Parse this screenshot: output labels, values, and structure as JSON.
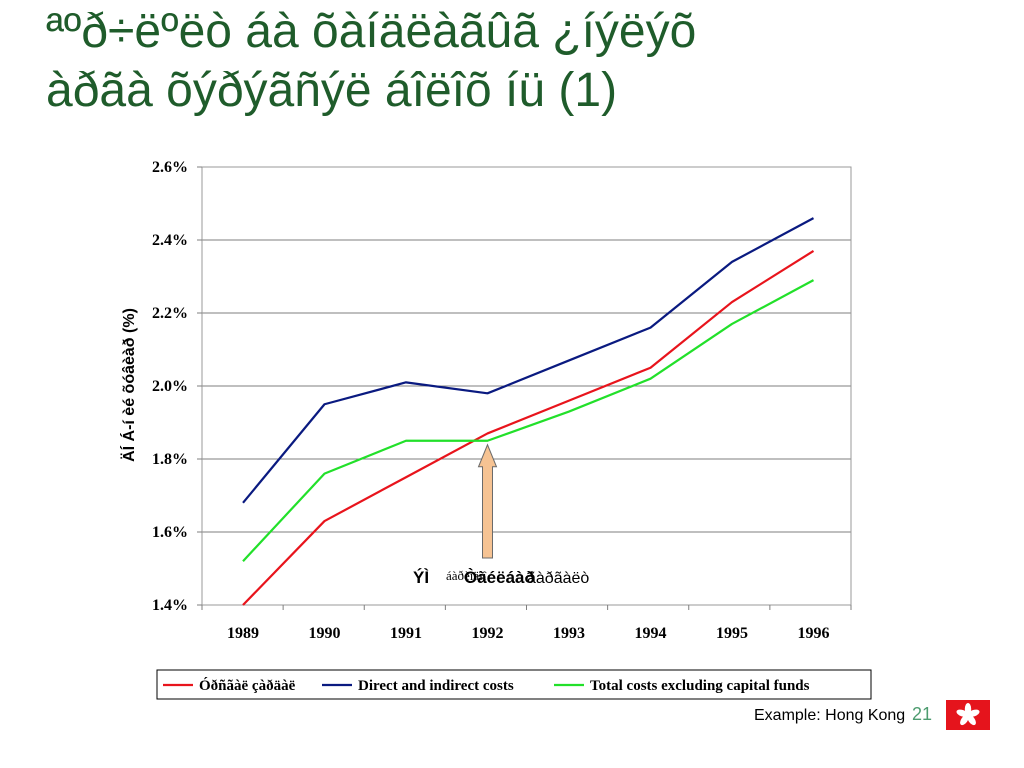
{
  "slide": {
    "title_line1": "ªºð÷ëºëò áà õàíäëàãûã ¿íýëýõ",
    "title_line2": "àðãà õýðýãñýë áîëîõ íü (1)",
    "footer": "Example: Hong Kong",
    "page_number": "21",
    "flag_icon": "hong-kong-bauhinia-flag-icon",
    "flag_color": "#e5141c"
  },
  "chart_data": {
    "type": "line",
    "x": [
      1989,
      1990,
      1991,
      1992,
      1993,
      1994,
      1995,
      1996
    ],
    "xticks": [
      "1989",
      "1990",
      "1991",
      "1992",
      "1993",
      "1994",
      "1995",
      "1996"
    ],
    "yticks": [
      "1.4%",
      "1.6%",
      "1.8%",
      "2.0%",
      "2.2%",
      "2.4%",
      "2.6%"
    ],
    "ylim": [
      1.4,
      2.6
    ],
    "ylabel": "ÄÍ Á-í èé õóâèàð (%)",
    "grid": "horizontal",
    "legend_position": "bottom",
    "series": [
      {
        "name": "Óðñãàë çàðäàë",
        "color": "#e8141c",
        "values": [
          1.4,
          1.63,
          1.75,
          1.87,
          1.96,
          2.05,
          2.23,
          2.37
        ]
      },
      {
        "name": "Direct and indirect costs",
        "color": "#0a1a80",
        "values": [
          1.68,
          1.95,
          2.01,
          1.98,
          2.07,
          2.16,
          2.34,
          2.46
        ]
      },
      {
        "name": "Total costs excluding capital funds",
        "color": "#22e02a",
        "values": [
          1.52,
          1.76,
          1.85,
          1.85,
          1.93,
          2.02,
          2.17,
          2.29
        ]
      }
    ],
    "annotation": {
      "text_main": "ÝÌ",
      "text_overlap": "Òàéëáàð",
      "text_rest": "áàðèìäîî",
      "text_tail": "ãàðãàëò",
      "x": 1992,
      "y": 1.85,
      "arrow_color": "#f6c393"
    }
  }
}
